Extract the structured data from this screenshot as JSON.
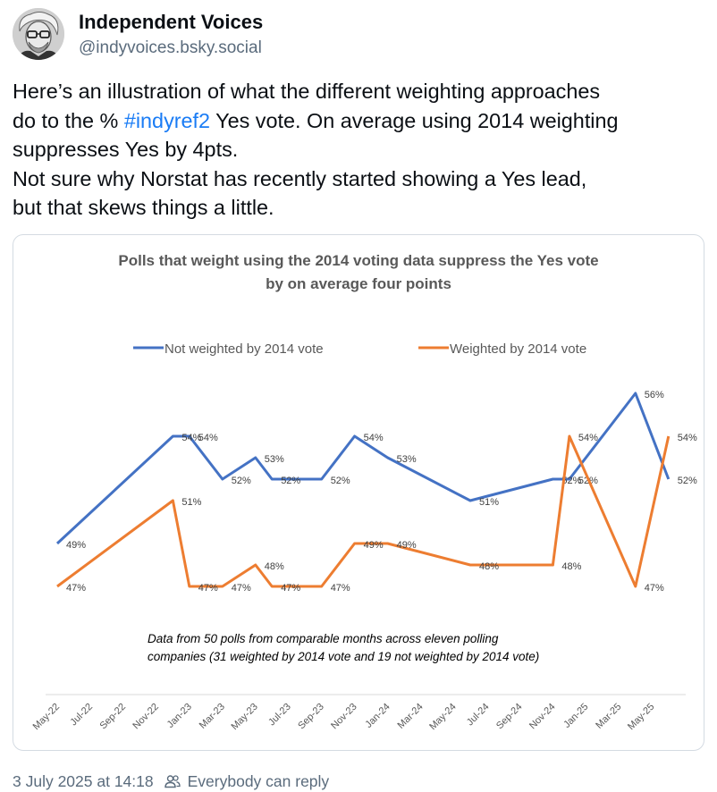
{
  "author": {
    "display_name": "Independent Voices",
    "handle": "@indyvoices.bsky.social"
  },
  "post": {
    "line1": "Here’s an illustration of what the different weighting approaches",
    "line2_pre": "do to the % ",
    "hashtag": "#indyref2",
    "line2_post": " Yes vote. On average using 2014 weighting",
    "line3": "suppresses Yes by 4pts.",
    "line4": "Not sure why Norstat has recently started showing a Yes lead,",
    "line5": "but that skews things a little.",
    "timestamp": "3 July 2025 at 14:18",
    "reply_setting": "Everybody can reply"
  },
  "icons": {
    "avatar": "avatar-portrait",
    "reply_setting": "people-icon"
  },
  "colors": {
    "hashtag": "#1a7cf5",
    "series_not_weighted": "#4472c4",
    "series_weighted": "#ed7d31"
  },
  "chart_data": {
    "type": "line",
    "title_line1": "Polls that weight using the 2014 voting data suppress the Yes vote",
    "title_line2": "by on average four points",
    "annotation_line1": "Data from 50 polls from comparable months across eleven polling",
    "annotation_line2": "companies  (31 weighted by 2014 vote and 19 not weighted by 2014 vote)",
    "legend_position": "top",
    "grid": false,
    "x_ticks": [
      "May-22",
      "Jul-22",
      "Sep-22",
      "Nov-22",
      "Jan-23",
      "Mar-23",
      "May-23",
      "Jul-23",
      "Sep-23",
      "Nov-23",
      "Jan-24",
      "Mar-24",
      "May-24",
      "Jul-24",
      "Sep-24",
      "Nov-24",
      "Jan-25",
      "Mar-25",
      "May-25"
    ],
    "series": [
      {
        "name": "Not weighted by 2014 vote",
        "color": "#4472c4",
        "points": [
          {
            "x": "May-22",
            "y": 49,
            "label": "49%"
          },
          {
            "x": "Dec-22",
            "y": 54,
            "label": "54%"
          },
          {
            "x": "Jan-23",
            "y": 54,
            "label": "54%"
          },
          {
            "x": "Mar-23",
            "y": 52,
            "label": "52%"
          },
          {
            "x": "May-23",
            "y": 53,
            "label": "53%"
          },
          {
            "x": "Jun-23",
            "y": 52,
            "label": "52%"
          },
          {
            "x": "Sep-23",
            "y": 52,
            "label": "52%"
          },
          {
            "x": "Nov-23",
            "y": 54,
            "label": "54%"
          },
          {
            "x": "Jan-24",
            "y": 53,
            "label": "53%"
          },
          {
            "x": "Jun-24",
            "y": 51,
            "label": "51%"
          },
          {
            "x": "Nov-24",
            "y": 52,
            "label": "52%"
          },
          {
            "x": "Dec-24",
            "y": 52,
            "label": "52%"
          },
          {
            "x": "Apr-25",
            "y": 56,
            "label": "56%"
          },
          {
            "x": "Jun-25",
            "y": 52,
            "label": "52%"
          }
        ]
      },
      {
        "name": "Weighted by 2014 vote",
        "color": "#ed7d31",
        "points": [
          {
            "x": "May-22",
            "y": 47,
            "label": "47%"
          },
          {
            "x": "Dec-22",
            "y": 51,
            "label": "51%"
          },
          {
            "x": "Jan-23",
            "y": 47,
            "label": "47%"
          },
          {
            "x": "Mar-23",
            "y": 47,
            "label": "47%"
          },
          {
            "x": "May-23",
            "y": 48,
            "label": "48%"
          },
          {
            "x": "Jun-23",
            "y": 47,
            "label": "47%"
          },
          {
            "x": "Sep-23",
            "y": 47,
            "label": "47%"
          },
          {
            "x": "Nov-23",
            "y": 49,
            "label": "49%"
          },
          {
            "x": "Jan-24",
            "y": 49,
            "label": "49%"
          },
          {
            "x": "Jun-24",
            "y": 48,
            "label": "48%"
          },
          {
            "x": "Nov-24",
            "y": 48,
            "label": "48%"
          },
          {
            "x": "Dec-24",
            "y": 54,
            "label": "54%"
          },
          {
            "x": "Apr-25",
            "y": 47,
            "label": "47%"
          },
          {
            "x": "Jun-25",
            "y": 54,
            "label": "54%"
          }
        ]
      }
    ]
  }
}
